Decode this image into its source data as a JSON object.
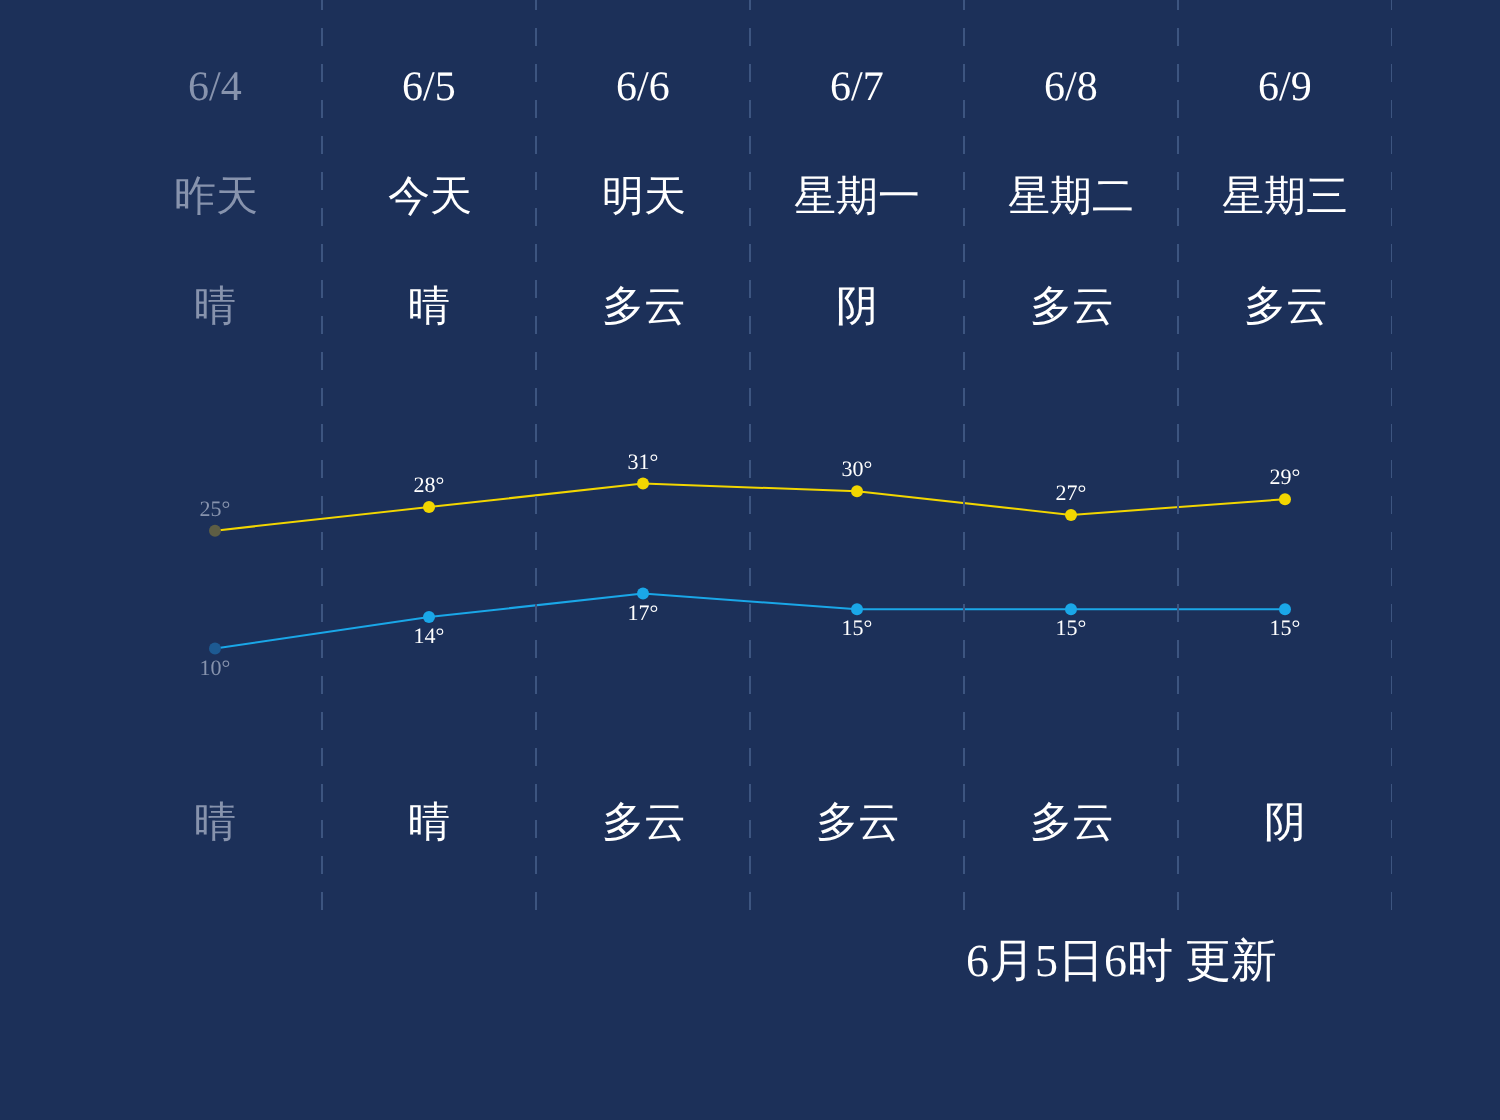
{
  "chart_data": {
    "type": "line",
    "categories": [
      "6/4",
      "6/5",
      "6/6",
      "6/7",
      "6/8",
      "6/9"
    ],
    "series": [
      {
        "color": "#f2d600",
        "colors": [
          "#5e5e44",
          "#f2d600",
          "#f2d600",
          "#f2d600",
          "#f2d600",
          "#f2d600"
        ],
        "values": [
          25,
          28,
          31,
          30,
          27,
          29
        ],
        "value_labels": [
          "25°",
          "28°",
          "31°",
          "30°",
          "27°",
          "29°"
        ]
      },
      {
        "color": "#1aa7e8",
        "colors": [
          "#1d5a92",
          "#1aa7e8",
          "#1aa7e8",
          "#1aa7e8",
          "#1aa7e8",
          "#1aa7e8"
        ],
        "values": [
          10,
          14,
          17,
          15,
          15,
          15
        ],
        "value_labels": [
          "10°",
          "14°",
          "17°",
          "15°",
          "15°",
          "15°"
        ]
      }
    ],
    "annotations": [
      "昨天",
      "今天",
      "明天",
      "星期一",
      "星期二",
      "星期三",
      "晴",
      "晴",
      "多云",
      "阴",
      "多云",
      "多云",
      "晴",
      "晴",
      "多云",
      "多云",
      "多云",
      "阴",
      "6月5日6时 更新"
    ],
    "marker": "circle",
    "line_style": "solid",
    "grid": "x"
  }
}
